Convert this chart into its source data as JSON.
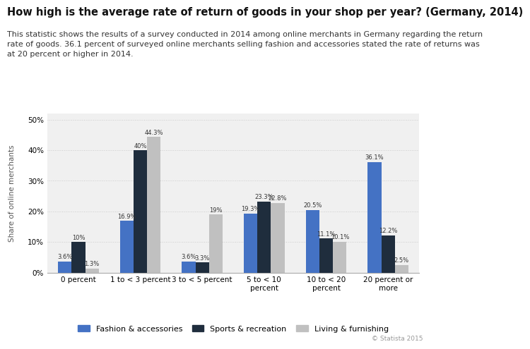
{
  "title": "How high is the average rate of return of goods in your shop per year? (Germany, 2014)",
  "subtitle": "This statistic shows the results of a survey conducted in 2014 among online merchants in Germany regarding the return\nrate of goods. 36.1 percent of surveyed online merchants selling fashion and accessories stated the rate of returns was\nat 20 percent or higher in 2014.",
  "categories": [
    "0 percent",
    "1 to < 3 percent",
    "3 to < 5 percent",
    "5 to < 10\npercent",
    "10 to < 20\npercent",
    "20 percent or\nmore"
  ],
  "series": {
    "Fashion & accessories": [
      3.6,
      16.9,
      3.6,
      19.3,
      20.5,
      36.1
    ],
    "Sports & recreation": [
      10.0,
      40.0,
      3.3,
      23.3,
      11.1,
      12.2
    ],
    "Living & furnishing": [
      1.3,
      44.3,
      19.0,
      22.8,
      10.1,
      2.5
    ]
  },
  "colors": {
    "Fashion & accessories": "#4472c4",
    "Sports & recreation": "#1f2d3d",
    "Living & furnishing": "#c0c0c0"
  },
  "ylabel": "Share of online merchants",
  "ylim": [
    0,
    52
  ],
  "yticks": [
    0,
    10,
    20,
    30,
    40,
    50
  ],
  "ytick_labels": [
    "0%",
    "10%",
    "20%",
    "30%",
    "40%",
    "50%"
  ],
  "background_color": "#ffffff",
  "plot_bg_color": "#f0f0f0",
  "copyright": "© Statista 2015",
  "title_fontsize": 10.5,
  "subtitle_fontsize": 8,
  "bar_width": 0.22,
  "legend_labels": [
    "Fashion & accessories",
    "Sports & recreation",
    "Living & furnishing"
  ],
  "value_labels": {
    "Fashion & accessories": [
      "3.6%",
      "16.9%",
      "3.6%",
      "19.3%",
      "20.5%",
      "36.1%"
    ],
    "Sports & recreation": [
      "10%",
      "40%",
      "3.3%",
      "23.3%",
      "11.1%",
      "12.2%"
    ],
    "Living & furnishing": [
      "1.3%",
      "44.3%",
      "19%",
      "22.8%",
      "10.1%",
      "2.5%"
    ]
  }
}
